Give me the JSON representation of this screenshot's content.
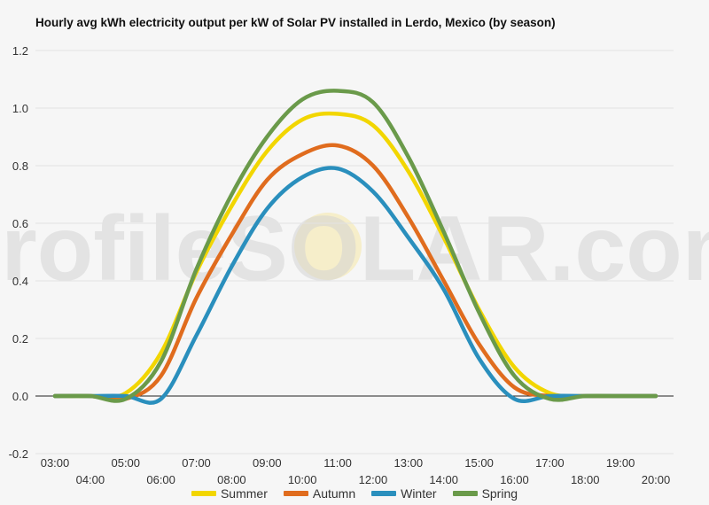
{
  "chart_data": {
    "type": "line",
    "title": "Hourly avg kWh electricity output per kW of Solar PV installed in Lerdo, Mexico (by season)",
    "xlabel": "",
    "ylabel": "",
    "watermark": "profileSOLAR.com",
    "x": [
      "03:00",
      "04:00",
      "05:00",
      "06:00",
      "07:00",
      "08:00",
      "09:00",
      "10:00",
      "11:00",
      "12:00",
      "13:00",
      "14:00",
      "15:00",
      "16:00",
      "17:00",
      "18:00",
      "19:00",
      "20:00"
    ],
    "ylim": [
      -0.2,
      1.2
    ],
    "yticks": [
      "1.2",
      "1.0",
      "0.8",
      "0.6",
      "0.4",
      "0.2",
      "0.0",
      "-0.2"
    ],
    "ytick_values": [
      1.2,
      1.0,
      0.8,
      0.6,
      0.4,
      0.2,
      0.0,
      -0.2
    ],
    "grid": true,
    "legend_position": "bottom",
    "series": [
      {
        "name": "Summer",
        "color": "#f2d600",
        "values": [
          0,
          0,
          0.01,
          0.15,
          0.43,
          0.66,
          0.85,
          0.96,
          0.98,
          0.94,
          0.78,
          0.55,
          0.3,
          0.1,
          0.01,
          0,
          0,
          0
        ]
      },
      {
        "name": "Autumn",
        "color": "#e06c1e",
        "values": [
          0,
          0,
          -0.01,
          0.07,
          0.34,
          0.56,
          0.75,
          0.84,
          0.87,
          0.8,
          0.62,
          0.4,
          0.18,
          0.03,
          0,
          0,
          0,
          0
        ]
      },
      {
        "name": "Winter",
        "color": "#2a8fbd",
        "values": [
          0,
          0,
          0,
          -0.01,
          0.21,
          0.45,
          0.65,
          0.76,
          0.79,
          0.71,
          0.55,
          0.37,
          0.13,
          -0.01,
          0,
          0,
          0,
          0
        ]
      },
      {
        "name": "Spring",
        "color": "#6a9a4a",
        "values": [
          0,
          0,
          -0.01,
          0.12,
          0.44,
          0.7,
          0.9,
          1.03,
          1.06,
          1.02,
          0.83,
          0.57,
          0.29,
          0.07,
          -0.01,
          0,
          0,
          0
        ]
      }
    ]
  }
}
